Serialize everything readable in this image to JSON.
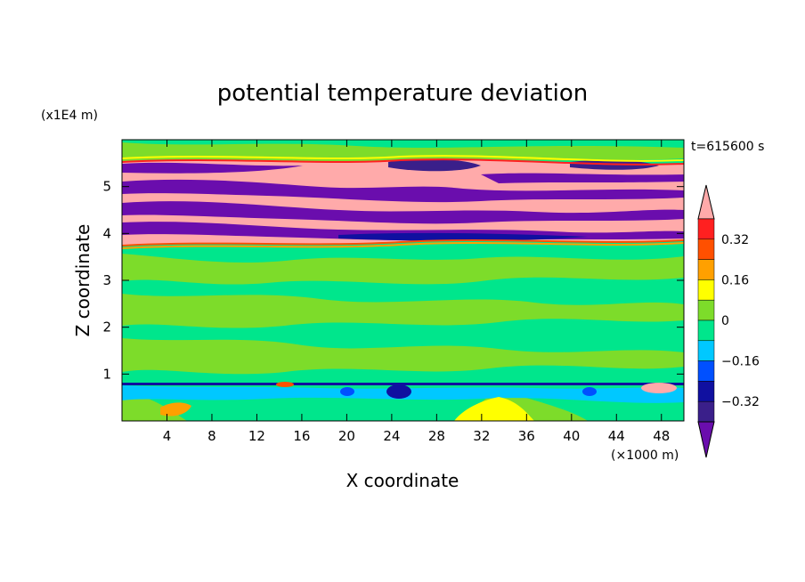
{
  "chart_data": {
    "type": "heatmap",
    "title": "potential temperature deviation",
    "xlabel": "X coordinate",
    "ylabel": "Z coordinate",
    "x_unit": "(×1000 m)",
    "y_unit": "(x1E4 m)",
    "time_label": "t=615600 s",
    "xlim": [
      0,
      50
    ],
    "ylim": [
      0,
      6
    ],
    "x_ticks": [
      4,
      8,
      12,
      16,
      20,
      24,
      28,
      32,
      36,
      40,
      44,
      48
    ],
    "y_ticks": [
      1,
      2,
      3,
      4,
      5
    ],
    "colorbar": {
      "levels": [
        -0.4,
        -0.32,
        -0.24,
        -0.16,
        -0.08,
        0,
        0.08,
        0.16,
        0.24,
        0.32,
        0.4
      ],
      "labeled_levels": [
        0.32,
        0.16,
        0,
        -0.16,
        -0.32
      ],
      "colors": [
        "#6a0dad",
        "#3a1f8a",
        "#1010a0",
        "#0050ff",
        "#00c8ff",
        "#00e68c",
        "#7ddc2a",
        "#ffff00",
        "#ffa000",
        "#ff5000",
        "#ff2020",
        "#ffaaaa"
      ],
      "extend": "both"
    },
    "regions": [
      {
        "z_range": [
          0,
          0.8
        ],
        "description_value": 0.0
      },
      {
        "z_range": [
          0.8,
          0.85
        ],
        "description_value": -0.32
      },
      {
        "z_range": [
          0.85,
          3.8
        ],
        "description_value": 0.02
      },
      {
        "z_range": [
          3.8,
          5.6
        ],
        "description_value": 0.4
      },
      {
        "z_range": [
          5.6,
          6
        ],
        "description_value": 0.02
      }
    ]
  }
}
